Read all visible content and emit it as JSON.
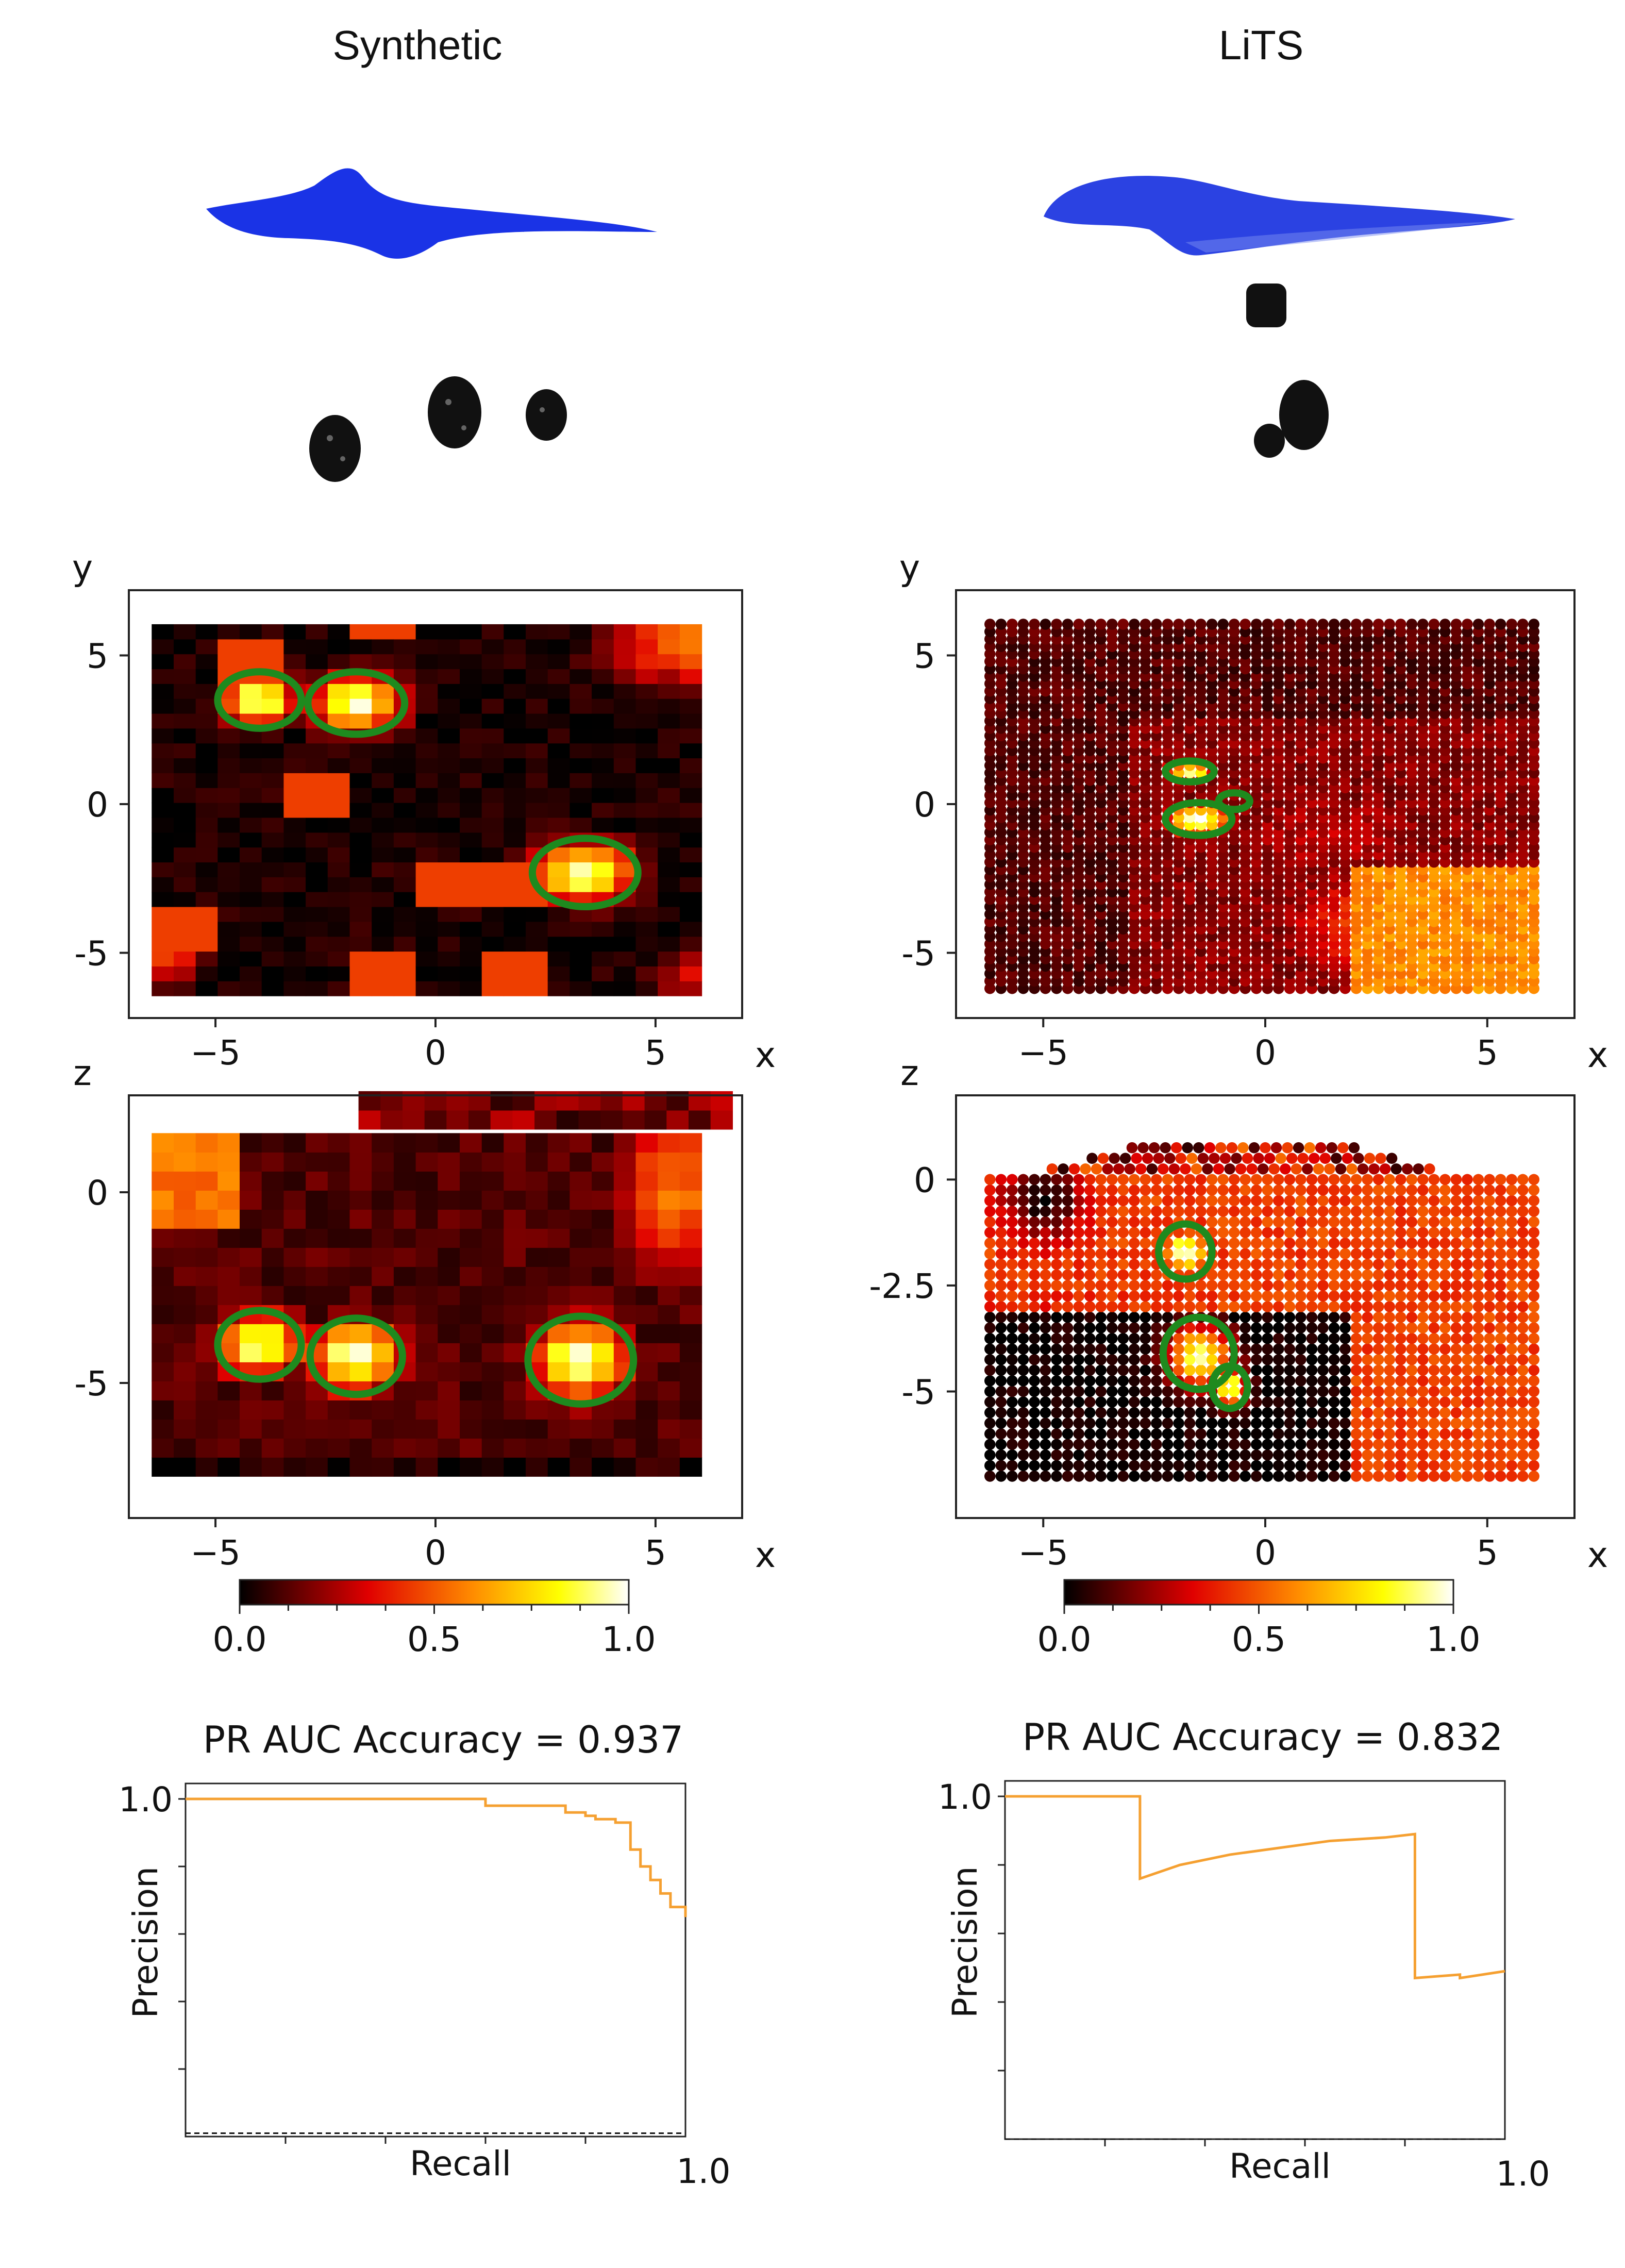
{
  "columns": [
    {
      "title": "Synthetic"
    },
    {
      "title": "LiTS"
    }
  ],
  "chart_data": [
    {
      "type": "heatmap",
      "panel": "synthetic-xy",
      "xlabel": "x",
      "ylabel": "y",
      "xlim": [
        -6.5,
        6.5
      ],
      "ylim": [
        -6.5,
        6.5
      ],
      "xticks": [
        -5,
        0,
        5
      ],
      "yticks": [
        -5,
        0,
        5
      ],
      "xtick_labels": [
        "−5",
        "0",
        "5"
      ],
      "ytick_labels": [
        "-5",
        "0",
        "5"
      ],
      "background": 0.04,
      "blobs": [
        {
          "x": -4.0,
          "y": 3.5,
          "rx": 0.9,
          "ry": 0.9,
          "v": 1.0
        },
        {
          "x": -1.8,
          "y": 3.4,
          "rx": 1.1,
          "ry": 1.0,
          "v": 1.0
        },
        {
          "x": 3.4,
          "y": -2.3,
          "rx": 1.2,
          "ry": 1.1,
          "v": 1.0
        },
        {
          "x": 5.6,
          "y": 5.6,
          "rx": 1.8,
          "ry": 1.8,
          "v": 0.55
        },
        {
          "x": -6.0,
          "y": -5.0,
          "rx": 0.8,
          "ry": 1.2,
          "v": 0.45
        },
        {
          "x": 5.8,
          "y": -5.8,
          "rx": 1.0,
          "ry": 1.0,
          "v": 0.35
        }
      ],
      "contours": [
        {
          "x": -4.0,
          "y": 3.5,
          "rx": 0.95,
          "ry": 0.95
        },
        {
          "x": -1.8,
          "y": 3.4,
          "rx": 1.1,
          "ry": 1.05
        },
        {
          "x": 3.4,
          "y": -2.3,
          "rx": 1.2,
          "ry": 1.15
        }
      ]
    },
    {
      "type": "heatmap",
      "panel": "lits-xy",
      "xlabel": "x",
      "ylabel": "y",
      "xlim": [
        -6.5,
        6.5
      ],
      "ylim": [
        -6.5,
        6.5
      ],
      "xticks": [
        -5,
        0,
        5
      ],
      "yticks": [
        -5,
        0,
        5
      ],
      "xtick_labels": [
        "−5",
        "0",
        "5"
      ],
      "ytick_labels": [
        "-5",
        "0",
        "5"
      ],
      "background": 0.2,
      "blobs": [
        {
          "x": -1.7,
          "y": 1.1,
          "rx": 0.6,
          "ry": 0.35,
          "v": 0.95
        },
        {
          "x": -1.5,
          "y": -0.5,
          "rx": 0.8,
          "ry": 0.6,
          "v": 1.0
        },
        {
          "x": 3.5,
          "y": -4.0,
          "rx": 3.5,
          "ry": 2.5,
          "v": 0.55
        },
        {
          "x": 1.5,
          "y": -1.0,
          "rx": 3.5,
          "ry": 2.5,
          "v": 0.28
        }
      ],
      "contours": [
        {
          "x": -1.7,
          "y": 1.1,
          "rx": 0.55,
          "ry": 0.35
        },
        {
          "x": -1.5,
          "y": -0.5,
          "rx": 0.75,
          "ry": 0.55
        },
        {
          "x": -0.7,
          "y": 0.1,
          "rx": 0.35,
          "ry": 0.28
        }
      ]
    },
    {
      "type": "heatmap",
      "panel": "synthetic-xz",
      "xlabel": "x",
      "ylabel": "z",
      "xlim": [
        -6.5,
        6.5
      ],
      "ylim": [
        -8.0,
        2.0
      ],
      "xticks": [
        -5,
        0,
        5
      ],
      "yticks": [
        -5,
        0
      ],
      "xtick_labels": [
        "−5",
        "0",
        "5"
      ],
      "ytick_labels": [
        "-5",
        "0"
      ],
      "background": 0.12,
      "blobs": [
        {
          "x": -4.0,
          "y": -4.0,
          "rx": 1.0,
          "ry": 0.9,
          "v": 1.0
        },
        {
          "x": -1.8,
          "y": -4.3,
          "rx": 1.1,
          "ry": 1.0,
          "v": 1.0
        },
        {
          "x": 3.3,
          "y": -4.4,
          "rx": 1.2,
          "ry": 1.1,
          "v": 1.0
        },
        {
          "x": -6.0,
          "y": 0.5,
          "rx": 1.5,
          "ry": 1.5,
          "v": 0.5
        },
        {
          "x": 5.5,
          "y": 0.0,
          "rx": 1.6,
          "ry": 2.5,
          "v": 0.55
        }
      ],
      "contours": [
        {
          "x": -4.0,
          "y": -4.0,
          "rx": 0.95,
          "ry": 0.9
        },
        {
          "x": -1.8,
          "y": -4.3,
          "rx": 1.05,
          "ry": 1.0
        },
        {
          "x": 3.3,
          "y": -4.4,
          "rx": 1.2,
          "ry": 1.15
        }
      ]
    },
    {
      "type": "heatmap",
      "panel": "lits-xz",
      "xlabel": "x",
      "ylabel": "z",
      "xlim": [
        -6.5,
        6.5
      ],
      "ylim": [
        -7.5,
        1.5
      ],
      "xticks": [
        -5,
        0,
        5
      ],
      "yticks": [
        -5,
        -2.5,
        0
      ],
      "xtick_labels": [
        "−5",
        "0",
        "5"
      ],
      "ytick_labels": [
        "-5",
        "-2.5",
        "0"
      ],
      "background": 0.45,
      "blobs": [
        {
          "x": -1.8,
          "y": -1.7,
          "rx": 0.6,
          "ry": 0.6,
          "v": 1.0
        },
        {
          "x": -1.5,
          "y": -4.2,
          "rx": 0.8,
          "ry": 0.8,
          "v": 1.0
        },
        {
          "x": -0.8,
          "y": -4.9,
          "rx": 0.4,
          "ry": 0.5,
          "v": 1.0
        },
        {
          "x": -4.5,
          "y": -5.5,
          "rx": 2.5,
          "ry": 2.0,
          "v": -0.45
        },
        {
          "x": -5.0,
          "y": -0.5,
          "rx": 1.0,
          "ry": 1.0,
          "v": -0.45
        }
      ],
      "contours": [
        {
          "x": -1.8,
          "y": -1.7,
          "rx": 0.6,
          "ry": 0.65
        },
        {
          "x": -1.5,
          "y": -4.1,
          "rx": 0.8,
          "ry": 0.85
        },
        {
          "x": -0.8,
          "y": -4.9,
          "rx": 0.4,
          "ry": 0.5
        }
      ]
    },
    {
      "type": "colorbar",
      "panel": "synthetic-colorbar",
      "range": [
        0.0,
        1.0
      ],
      "tick_labels": [
        "0.0",
        "0.5",
        "1.0"
      ]
    },
    {
      "type": "colorbar",
      "panel": "lits-colorbar",
      "range": [
        0.0,
        1.0
      ],
      "tick_labels": [
        "0.0",
        "0.5",
        "1.0"
      ]
    },
    {
      "type": "line",
      "panel": "synthetic-pr",
      "title": "PR AUC Accuracy = 0.937",
      "xlabel": "Recall",
      "ylabel": "Precision",
      "xlim": [
        0.0,
        1.0
      ],
      "ylim": [
        0.0,
        1.0
      ],
      "xtick_right": "1.0",
      "ytick_top": "1.0",
      "baseline": 0.01,
      "points": [
        [
          0.0,
          1.0
        ],
        [
          0.58,
          1.0
        ],
        [
          0.6,
          0.98
        ],
        [
          0.73,
          0.98
        ],
        [
          0.76,
          0.96
        ],
        [
          0.8,
          0.95
        ],
        [
          0.82,
          0.94
        ],
        [
          0.86,
          0.93
        ],
        [
          0.89,
          0.85
        ],
        [
          0.91,
          0.8
        ],
        [
          0.93,
          0.76
        ],
        [
          0.95,
          0.72
        ],
        [
          0.97,
          0.68
        ],
        [
          1.0,
          0.65
        ]
      ]
    },
    {
      "type": "line",
      "panel": "lits-pr",
      "title": "PR AUC Accuracy = 0.832",
      "xlabel": "Recall",
      "ylabel": "Precision",
      "xlim": [
        0.0,
        1.0
      ],
      "ylim": [
        0.0,
        1.0
      ],
      "xtick_right": "1.0",
      "ytick_top": "1.0",
      "baseline": 0.0,
      "points": [
        [
          0.0,
          1.0
        ],
        [
          0.27,
          1.0
        ],
        [
          0.27,
          0.76
        ],
        [
          0.35,
          0.8
        ],
        [
          0.45,
          0.83
        ],
        [
          0.55,
          0.85
        ],
        [
          0.65,
          0.87
        ],
        [
          0.76,
          0.88
        ],
        [
          0.82,
          0.89
        ],
        [
          0.82,
          0.47
        ],
        [
          0.91,
          0.48
        ],
        [
          0.91,
          0.47
        ],
        [
          1.0,
          0.49
        ]
      ]
    }
  ]
}
